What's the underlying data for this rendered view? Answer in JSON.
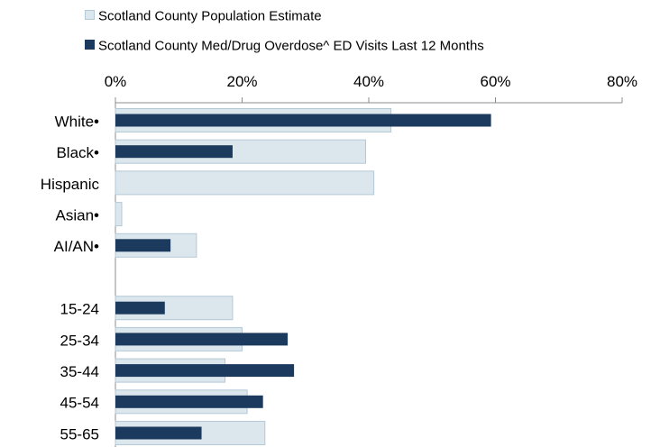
{
  "chart_data": {
    "type": "bar",
    "orientation": "horizontal",
    "title": "",
    "xlabel": "",
    "ylabel": "",
    "xlim": [
      0,
      80
    ],
    "x_ticks": [
      "0%",
      "20%",
      "40%",
      "60%",
      "80%"
    ],
    "x_tick_values": [
      0,
      20,
      40,
      60,
      80
    ],
    "x_axis_position": "top",
    "legend_position": "top-left",
    "grid": false,
    "categories": [
      "White•",
      "Black•",
      "Hispanic",
      "Asian•",
      "AI/AN•",
      "",
      "15-24",
      "25-34",
      "35-44",
      "45-54",
      "55-65"
    ],
    "series": [
      {
        "name": "Scotland County Population Estimate",
        "color": "#dce6ed",
        "border": "#b5c9d6",
        "values": [
          43.5,
          39.5,
          40.8,
          1.0,
          12.8,
          null,
          18.5,
          20.0,
          17.3,
          20.8,
          23.6
        ]
      },
      {
        "name": "Scotland County Med/Drug Overdose^ ED Visits Last 12 Months",
        "color": "#1c3a5e",
        "border": "#1c3a5e",
        "values": [
          59.3,
          18.5,
          0,
          0,
          8.7,
          null,
          7.8,
          27.2,
          28.2,
          23.3,
          13.6
        ]
      }
    ]
  }
}
